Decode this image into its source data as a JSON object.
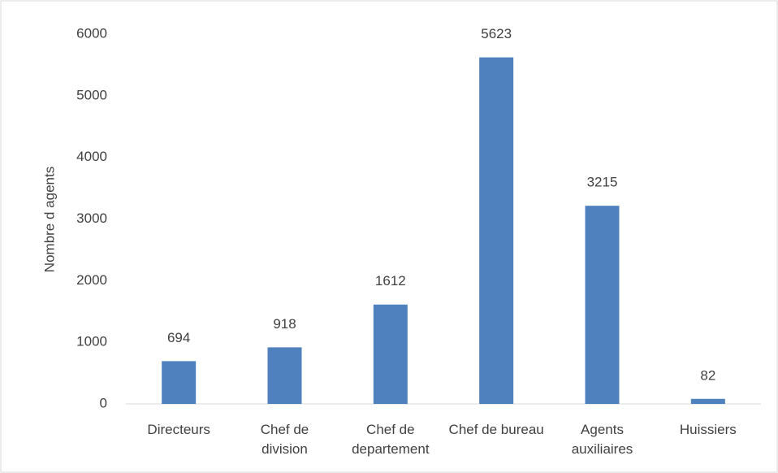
{
  "chart_data": {
    "type": "bar",
    "y_label": "Nombre d agents",
    "categories": [
      "Directeurs",
      "Chef de division",
      "Chef de departement",
      "Chef de bureau",
      "Agents auxiliaires",
      "Huissiers"
    ],
    "values": [
      694,
      918,
      1612,
      5623,
      3215,
      82
    ],
    "color": "#4e81bd",
    "ylim": [
      0,
      6000
    ],
    "yticks": [
      0,
      1000,
      2000,
      3000,
      4000,
      5000,
      6000
    ],
    "grid": false
  }
}
